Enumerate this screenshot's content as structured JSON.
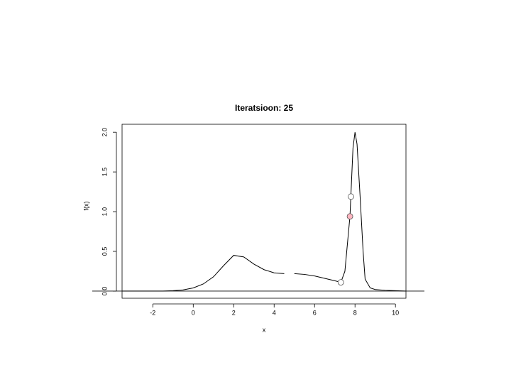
{
  "chart_data": {
    "type": "line",
    "title": "Iteratsioon: 25",
    "x_label": "x",
    "y_label": "f(x)",
    "x": [
      -3.5,
      -3,
      -2.5,
      -2,
      -1.5,
      -1,
      -0.5,
      0,
      0.5,
      1,
      1.5,
      2,
      2.5,
      3,
      3.5,
      4,
      4.5,
      4.75,
      5,
      5.5,
      6,
      6.5,
      7,
      7.3,
      7.5,
      7.75,
      7.9,
      8,
      8.1,
      8.25,
      8.4,
      8.5,
      8.75,
      9,
      9.5,
      10,
      10.5
    ],
    "series": [
      {
        "color": "#000000",
        "values": [
          0,
          0,
          0,
          0,
          0,
          0.005,
          0.015,
          0.04,
          0.09,
          0.18,
          0.32,
          0.45,
          0.43,
          0.34,
          0.27,
          0.23,
          0.22,
          null,
          0.22,
          0.21,
          0.19,
          0.16,
          0.13,
          0.11,
          0.25,
          0.94,
          1.8,
          2.0,
          1.85,
          1.2,
          0.5,
          0.15,
          0.04,
          0.02,
          0.01,
          0.005,
          0
        ]
      }
    ],
    "points": {
      "x": [
        7.3,
        7.8,
        7.75
      ],
      "y": [
        0.11,
        1.19,
        0.94
      ],
      "colors": [
        "#ffffff",
        "#ffffff",
        "#ffb6c1"
      ]
    },
    "hline": 0,
    "xlim": [
      -3.52,
      10.52
    ],
    "ylim": [
      -0.09,
      2.1
    ],
    "xticks": [
      -2,
      0,
      2,
      4,
      6,
      8,
      10
    ],
    "yticks": [
      {
        "value": 0,
        "label": "0.0"
      },
      0.5,
      {
        "value": 1,
        "label": "1.0"
      },
      1.5,
      {
        "value": 2,
        "label": "2.0"
      }
    ]
  }
}
